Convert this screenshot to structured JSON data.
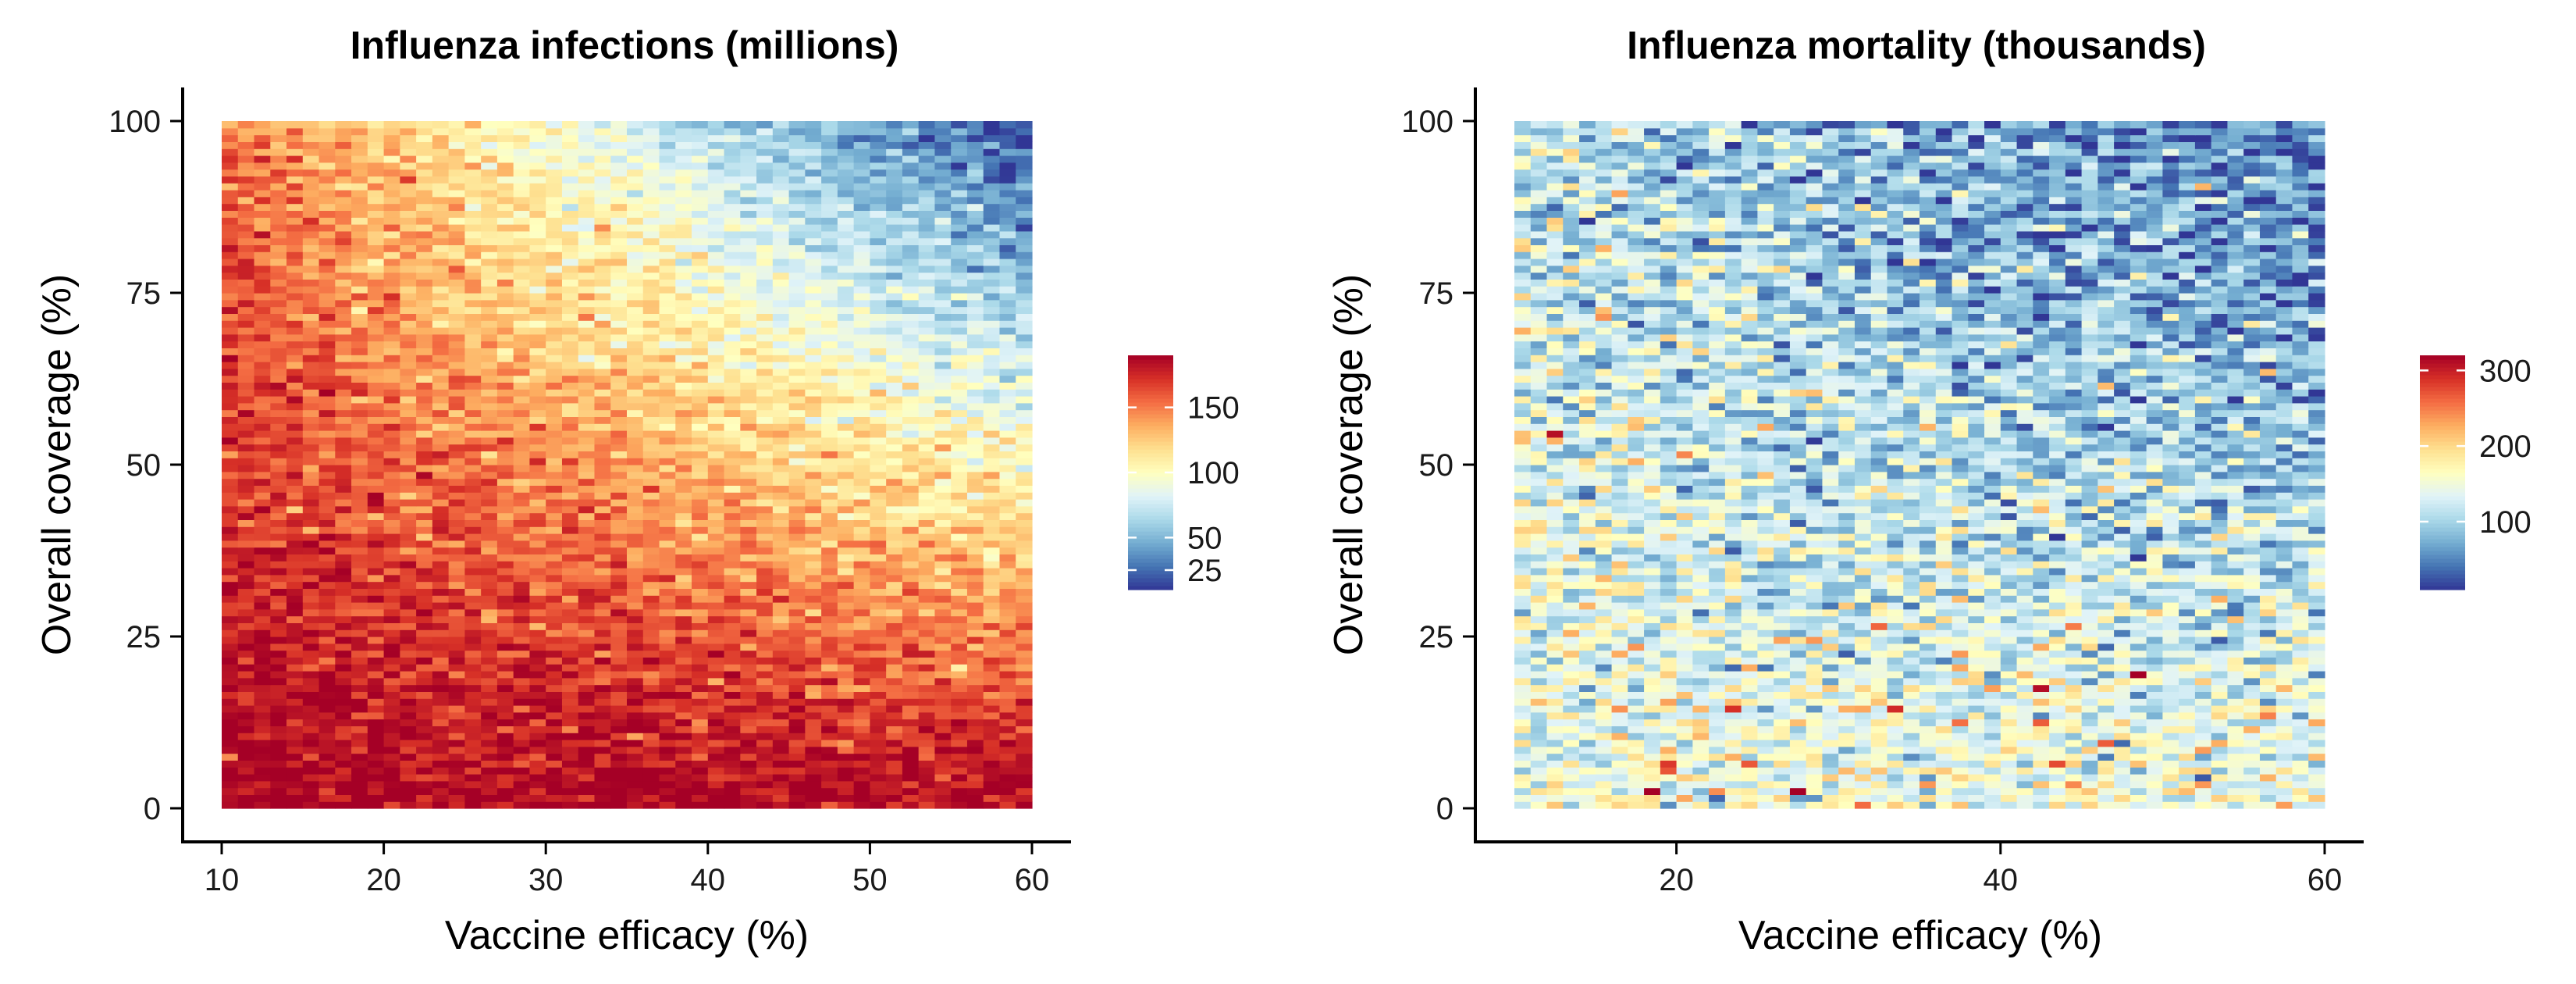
{
  "chart_data": [
    {
      "type": "heatmap",
      "title": "Influenza infections (millions)",
      "xlabel": "Vaccine efficacy (%)",
      "ylabel": "Overall coverage (%)",
      "xlim": [
        10,
        60
      ],
      "ylim": [
        0,
        100
      ],
      "x_ticks": [
        10,
        20,
        30,
        40,
        50,
        60
      ],
      "y_ticks": [
        0,
        25,
        50,
        75,
        100
      ],
      "x_cells": 50,
      "y_cells": 100,
      "value_model": "value ≈ 190 − 1.75·coverage·(efficacy/60)^0.9 ± 12 noise (estimated from the colour field)",
      "grid": false,
      "colorbar": {
        "palette": "RdYlBu (reversed)",
        "min": 10,
        "max": 190,
        "ticks": [
          25,
          50,
          100,
          150
        ],
        "colors": [
          "#313695",
          "#4575b4",
          "#74add1",
          "#abd9e9",
          "#e0f3f8",
          "#ffffbf",
          "#fee090",
          "#fdae61",
          "#f46d43",
          "#d73027",
          "#a50026"
        ]
      }
    },
    {
      "type": "heatmap",
      "title": "Influenza mortality (thousands)",
      "xlabel": "Vaccine efficacy (%)",
      "ylabel": "Overall coverage (%)",
      "xlim": [
        10,
        60
      ],
      "ylim": [
        0,
        100
      ],
      "x_ticks": [
        20,
        40,
        60
      ],
      "y_ticks": [
        0,
        25,
        50,
        75,
        100
      ],
      "x_cells": 50,
      "y_cells": 100,
      "value_model": "value ≈ 150 − 1.1·coverage·(efficacy/60)^0.7 with heavy noise, occasional peaks up to ~320",
      "grid": false,
      "colorbar": {
        "palette": "RdYlBu (reversed)",
        "min": 10,
        "max": 320,
        "ticks": [
          100,
          200,
          300
        ],
        "colors": [
          "#313695",
          "#4575b4",
          "#74add1",
          "#abd9e9",
          "#e0f3f8",
          "#ffffbf",
          "#fee090",
          "#fdae61",
          "#f46d43",
          "#d73027",
          "#a50026"
        ]
      }
    }
  ]
}
